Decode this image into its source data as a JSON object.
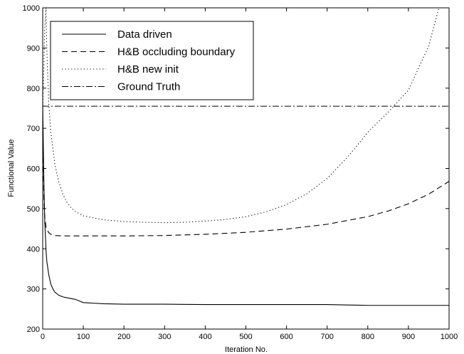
{
  "chart_data": {
    "type": "line",
    "xlabel": "Iteration No.",
    "ylabel": "Functional Value",
    "xlim": [
      0,
      1000
    ],
    "ylim": [
      200,
      1000
    ],
    "xticks": [
      "0",
      "100",
      "200",
      "300",
      "400",
      "500",
      "600",
      "700",
      "800",
      "900",
      "1000"
    ],
    "yticks": [
      "200",
      "300",
      "400",
      "500",
      "600",
      "700",
      "800",
      "900",
      "1000"
    ],
    "grid": false,
    "legend_position": "top-left",
    "series": [
      {
        "name": "Data driven",
        "style": "solid",
        "x": [
          0,
          3,
          5,
          8,
          10,
          15,
          20,
          25,
          30,
          40,
          50,
          60,
          70,
          80,
          90,
          100,
          150,
          200,
          300,
          400,
          500,
          600,
          700,
          750,
          800,
          900,
          1000
        ],
        "y": [
          760,
          560,
          470,
          400,
          370,
          335,
          312,
          300,
          292,
          284,
          280,
          278,
          276,
          274,
          270,
          266,
          263,
          262,
          262,
          261,
          261,
          261,
          261,
          260,
          259,
          259,
          259
        ]
      },
      {
        "name": "H&B occluding boundary",
        "style": "dashed",
        "x": [
          0,
          3,
          5,
          8,
          10,
          15,
          20,
          30,
          50,
          100,
          200,
          300,
          400,
          500,
          600,
          700,
          800,
          850,
          900,
          950,
          1000
        ],
        "y": [
          720,
          520,
          480,
          455,
          448,
          440,
          436,
          433,
          432,
          432,
          432,
          433,
          436,
          441,
          449,
          461,
          480,
          494,
          512,
          536,
          568
        ]
      },
      {
        "name": "H&B new init",
        "style": "dotted",
        "x": [
          0,
          3,
          5,
          8,
          10,
          15,
          20,
          30,
          40,
          50,
          60,
          70,
          80,
          100,
          150,
          200,
          250,
          300,
          350,
          400,
          450,
          500,
          550,
          600,
          650,
          700,
          750,
          800,
          850,
          900,
          950,
          975
        ],
        "y": [
          740,
          860,
          950,
          1000,
          900,
          760,
          690,
          610,
          565,
          535,
          515,
          502,
          493,
          482,
          472,
          468,
          466,
          465,
          466,
          469,
          473,
          480,
          492,
          510,
          537,
          575,
          628,
          690,
          740,
          795,
          905,
          1000
        ]
      },
      {
        "name": "Ground Truth",
        "style": "dashdot",
        "x": [
          0,
          1000
        ],
        "y": [
          755,
          755
        ]
      }
    ]
  }
}
